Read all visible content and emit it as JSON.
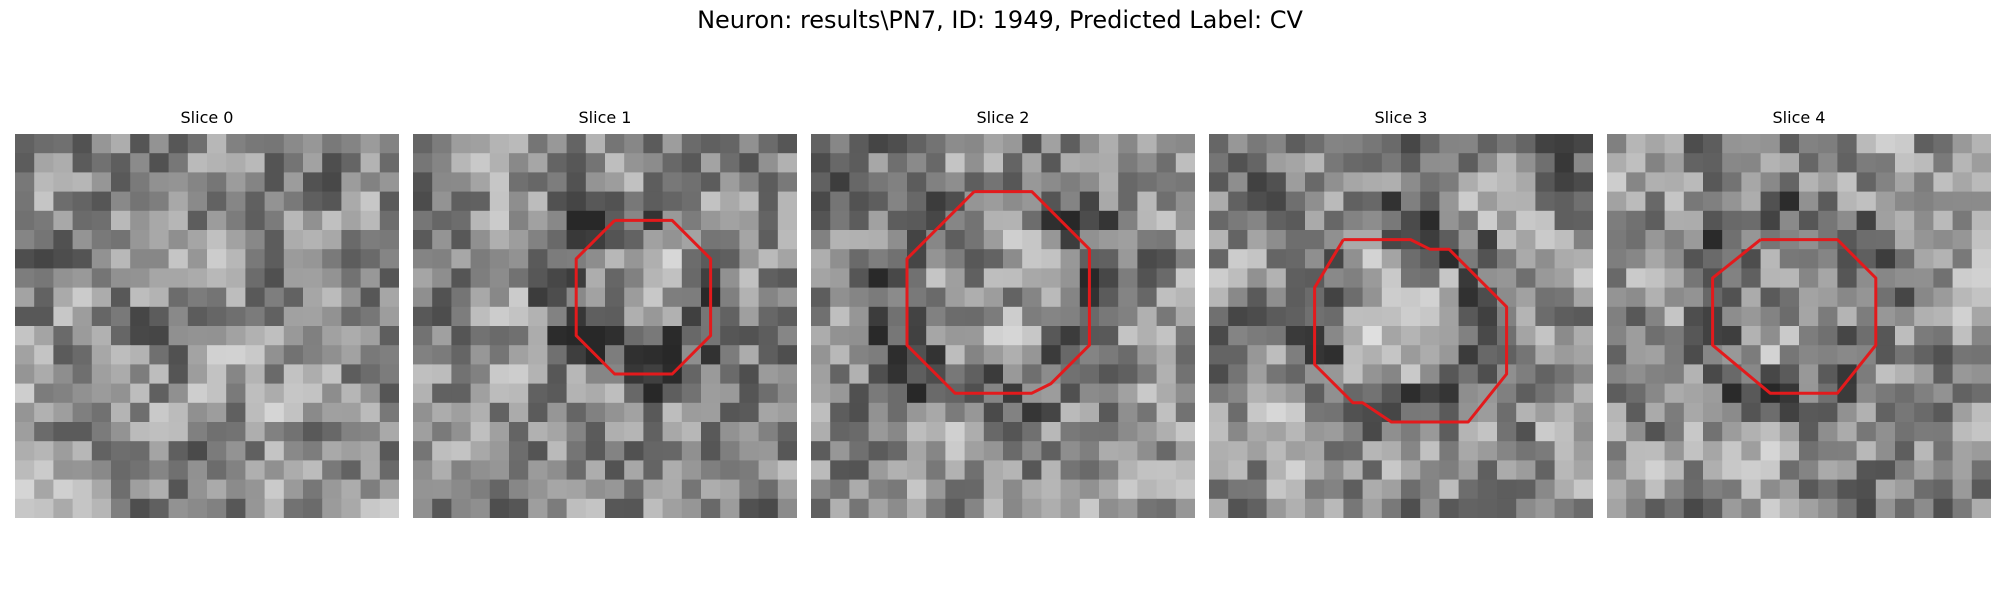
{
  "figure": {
    "title": "Neuron: results\\PN7, ID: 1949, Predicted Label: CV"
  },
  "slices": [
    {
      "title": "Slice 0",
      "seed": 11,
      "has_contour": false
    },
    {
      "title": "Slice 1",
      "seed": 23,
      "has_contour": true,
      "contour_cells": [
        [
          10.5,
          4.5
        ],
        [
          13.5,
          4.5
        ],
        [
          15.5,
          6.5
        ],
        [
          15.5,
          10.5
        ],
        [
          13.5,
          12.5
        ],
        [
          10.5,
          12.5
        ],
        [
          8.5,
          10.5
        ],
        [
          8.5,
          6.5
        ],
        [
          10.5,
          4.5
        ]
      ]
    },
    {
      "title": "Slice 2",
      "seed": 37,
      "has_contour": true,
      "contour_cells": [
        [
          8.5,
          3.0
        ],
        [
          11.5,
          3.0
        ],
        [
          14.5,
          6.0
        ],
        [
          14.5,
          11.0
        ],
        [
          12.5,
          13.0
        ],
        [
          11.5,
          13.5
        ],
        [
          7.5,
          13.5
        ],
        [
          5.0,
          11.0
        ],
        [
          5.0,
          6.5
        ],
        [
          8.5,
          3.0
        ]
      ]
    },
    {
      "title": "Slice 3",
      "seed": 49,
      "has_contour": true,
      "contour_cells": [
        [
          7.0,
          5.5
        ],
        [
          10.5,
          5.5
        ],
        [
          11.5,
          6.0
        ],
        [
          12.5,
          6.0
        ],
        [
          15.5,
          9.0
        ],
        [
          15.5,
          12.5
        ],
        [
          13.5,
          15.0
        ],
        [
          9.5,
          15.0
        ],
        [
          8.0,
          14.0
        ],
        [
          7.5,
          14.0
        ],
        [
          5.5,
          12.0
        ],
        [
          5.5,
          8.0
        ],
        [
          7.0,
          5.5
        ]
      ]
    },
    {
      "title": "Slice 4",
      "seed": 61,
      "has_contour": true,
      "contour_cells": [
        [
          8.0,
          5.5
        ],
        [
          12.0,
          5.5
        ],
        [
          14.0,
          7.5
        ],
        [
          14.0,
          11.0
        ],
        [
          12.0,
          13.5
        ],
        [
          8.5,
          13.5
        ],
        [
          5.5,
          11.0
        ],
        [
          5.5,
          7.5
        ],
        [
          8.0,
          5.5
        ]
      ]
    }
  ],
  "grid": {
    "cells": 20
  },
  "colors": {
    "contour": "#e31a1c",
    "colormap": "gray"
  }
}
